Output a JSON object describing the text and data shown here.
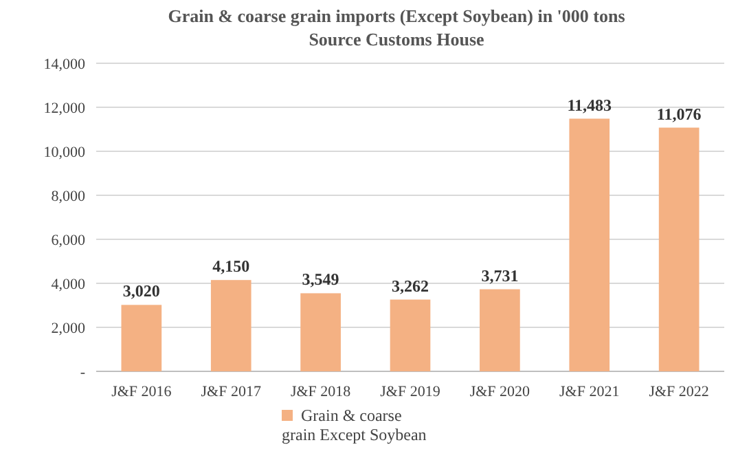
{
  "chart_data": {
    "type": "bar",
    "title": "Grain & coarse grain imports (Except Soybean) in '000 tons",
    "subtitle": "Source Customs House",
    "categories": [
      "J&F 2016",
      "J&F 2017",
      "J&F 2018",
      "J&F 2019",
      "J&F 2020",
      "J&F 2021",
      "J&F 2022"
    ],
    "series": [
      {
        "name": "Grain & coarse grain Except Soybean",
        "color": "#f4b183",
        "values": [
          3020,
          4150,
          3549,
          3262,
          3731,
          11483,
          11076
        ],
        "value_labels": [
          "3,020",
          "4,150",
          "3,549",
          "3,262",
          "3,731",
          "11,483",
          "11,076"
        ]
      }
    ],
    "ylim": [
      0,
      14000
    ],
    "yticks": [
      {
        "value": 0,
        "label": "-"
      },
      {
        "value": 2000,
        "label": "2,000"
      },
      {
        "value": 4000,
        "label": "4,000"
      },
      {
        "value": 6000,
        "label": "6,000"
      },
      {
        "value": 8000,
        "label": "8,000"
      },
      {
        "value": 10000,
        "label": "10,000"
      },
      {
        "value": 12000,
        "label": "12,000"
      },
      {
        "value": 14000,
        "label": "14,000"
      }
    ],
    "grid": "y",
    "legend": "bottom"
  }
}
